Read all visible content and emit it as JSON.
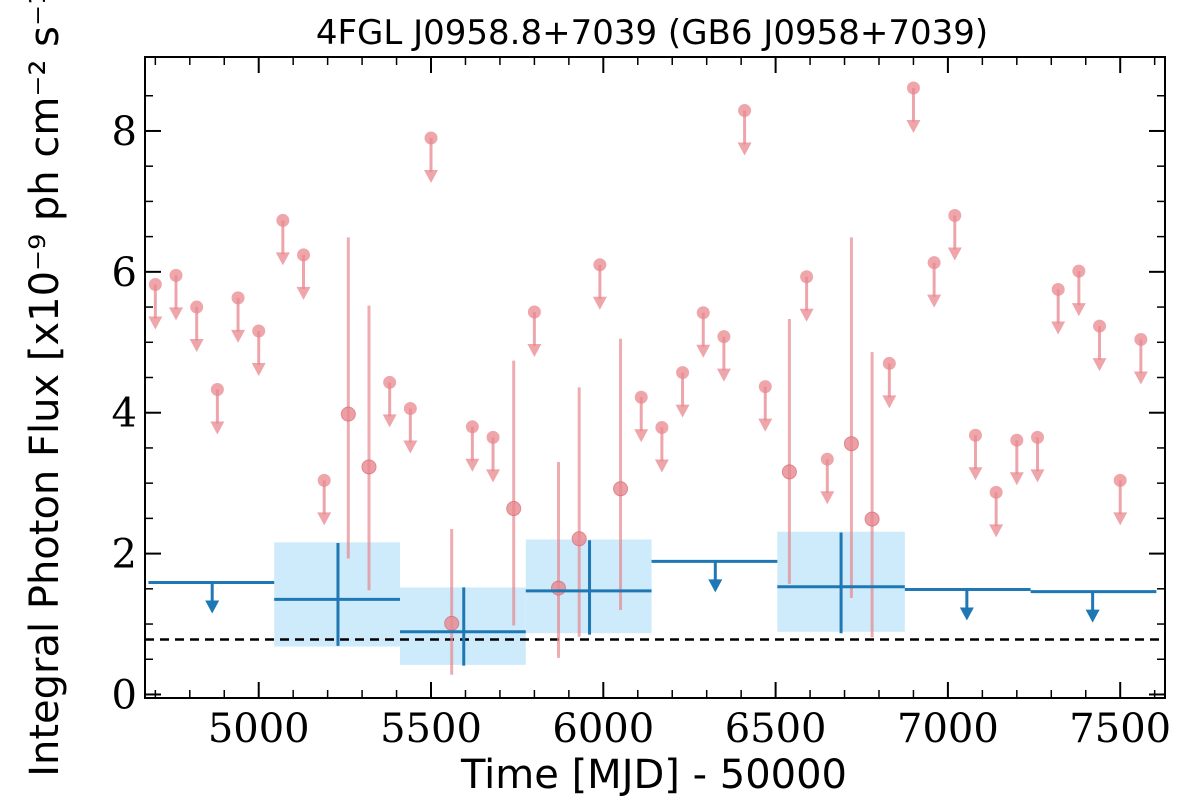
{
  "chart_data": {
    "type": "scatter",
    "title": "4FGL J0958.8+7039 (GB6 J0958+7039)",
    "xlabel": "Time [MJD] - 50000",
    "ylabel": "Integral Photon Flux [x10⁻⁹ ph cm⁻² s⁻¹]",
    "xlim": [
      4670,
      7630
    ],
    "ylim": [
      -0.05,
      9.05
    ],
    "x_ticks": [
      5000,
      5500,
      6000,
      6500,
      7000,
      7500
    ],
    "x_tick_labels": [
      "5000",
      "5500",
      "6000",
      "6500",
      "7000",
      "7500"
    ],
    "y_ticks": [
      0,
      2,
      4,
      6,
      8
    ],
    "y_tick_labels": [
      "0",
      "2",
      "4",
      "6",
      "8"
    ],
    "grid": false,
    "legend": "none",
    "reference_line": {
      "y": 0.78,
      "style": "dashed",
      "color": "#000000"
    },
    "colors": {
      "fine_series": "#e8888f",
      "coarse_series": "#1f77b4",
      "coarse_band": "#cdebfb"
    },
    "series": [
      {
        "kind": "fine-upper-limits",
        "x": [
          4700,
          4760,
          4820,
          4880,
          4940,
          5000,
          5070,
          5130,
          5190,
          5380,
          5440,
          5500,
          5620,
          5680,
          5800,
          5990,
          6110,
          6170,
          6230,
          6290,
          6350,
          6410,
          6470,
          6590,
          6650,
          6830,
          6900,
          6960,
          7020,
          7080,
          7140,
          7200,
          7260,
          7320,
          7380,
          7440,
          7500,
          7560
        ],
        "y": [
          5.82,
          5.95,
          5.5,
          4.33,
          5.63,
          5.16,
          6.73,
          6.24,
          3.04,
          4.43,
          4.06,
          7.9,
          3.8,
          3.65,
          5.43,
          6.1,
          4.22,
          3.79,
          4.57,
          5.42,
          5.08,
          8.29,
          4.37,
          5.93,
          3.34,
          4.7,
          8.61,
          6.13,
          6.8,
          3.68,
          2.87,
          3.61,
          3.65,
          5.75,
          6.01,
          5.23,
          3.04,
          5.04
        ]
      },
      {
        "kind": "fine-detections",
        "x": [
          5260,
          5320,
          5560,
          5740,
          5870,
          5930,
          6050,
          6540,
          6720,
          6780
        ],
        "y": [
          3.98,
          3.23,
          1.01,
          2.64,
          1.51,
          2.21,
          2.92,
          3.16,
          3.56,
          2.49
        ],
        "y_low": [
          1.93,
          1.48,
          0.28,
          0.98,
          0.52,
          0.82,
          1.2,
          1.57,
          1.37,
          0.81
        ],
        "y_high": [
          6.49,
          5.52,
          2.35,
          4.74,
          3.3,
          4.36,
          5.05,
          5.33,
          6.49,
          4.86
        ]
      },
      {
        "kind": "coarse-detections",
        "x_start": [
          5045,
          5410,
          5775,
          6505
        ],
        "x_end": [
          5410,
          5775,
          6140,
          6875
        ],
        "x_center": [
          5230,
          5595,
          5960,
          6690
        ],
        "y": [
          1.35,
          0.89,
          1.47,
          1.53
        ],
        "y_low": [
          0.69,
          0.41,
          0.85,
          0.87
        ],
        "y_high": [
          2.15,
          1.52,
          2.19,
          2.3
        ],
        "band_low": [
          0.68,
          0.42,
          0.87,
          0.89
        ],
        "band_high": [
          2.16,
          1.52,
          2.2,
          2.31
        ]
      },
      {
        "kind": "coarse-upper-limits",
        "x_start": [
          4680,
          6140,
          6875,
          7240
        ],
        "x_end": [
          5045,
          6505,
          7240,
          7605
        ],
        "x_center": [
          4865,
          6325,
          7055,
          7420
        ],
        "y": [
          1.59,
          1.89,
          1.49,
          1.46
        ]
      }
    ]
  }
}
